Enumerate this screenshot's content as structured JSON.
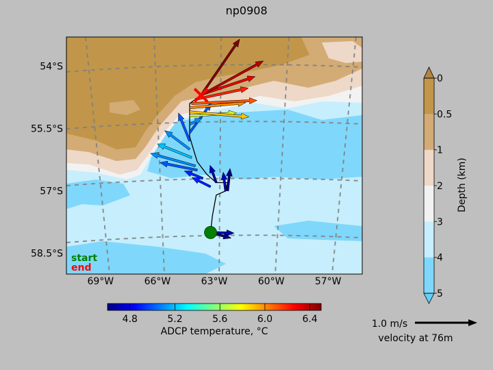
{
  "chart_data": [
    {
      "type": "scatter",
      "title": "np0908",
      "x_ticks": [
        "69°W",
        "66°W",
        "63°W",
        "60°W",
        "57°W"
      ],
      "x_tick_values": [
        -69,
        -66,
        -63,
        -60,
        -57
      ],
      "y_ticks": [
        "54°S",
        "55.5°S",
        "57°S",
        "58.5°S"
      ],
      "y_tick_values": [
        -54,
        -55.5,
        -57,
        -58.5
      ],
      "xlim": [
        -70.8,
        -55.2
      ],
      "ylim": [
        -59.0,
        -53.3
      ],
      "grid": true,
      "legend": {
        "start": "start",
        "end": "end",
        "placement": "bottom-left"
      },
      "start": {
        "lon": -63.2,
        "lat": -58.0
      },
      "end": {
        "lon": -63.7,
        "lat": -54.7
      },
      "ship_track": [
        {
          "lon": -63.2,
          "lat": -58.0
        },
        {
          "lon": -63.1,
          "lat": -57.6
        },
        {
          "lon": -62.9,
          "lat": -57.1
        },
        {
          "lon": -62.4,
          "lat": -57.0
        },
        {
          "lon": -62.3,
          "lat": -56.8
        },
        {
          "lon": -62.9,
          "lat": -56.8
        },
        {
          "lon": -63.4,
          "lat": -56.6
        },
        {
          "lon": -63.9,
          "lat": -56.3
        },
        {
          "lon": -64.1,
          "lat": -56.0
        },
        {
          "lon": -64.3,
          "lat": -55.7
        },
        {
          "lon": -64.3,
          "lat": -55.2
        },
        {
          "lon": -64.3,
          "lat": -54.9
        },
        {
          "lon": -63.7,
          "lat": -54.7
        }
      ],
      "velocity_vectors": [
        {
          "lon": -63.2,
          "lat": -58.0,
          "u": 0.38,
          "v": -0.01,
          "temp": 4.7
        },
        {
          "lon": -63.2,
          "lat": -58.0,
          "u": 0.33,
          "v": -0.09,
          "temp": 4.6
        },
        {
          "lon": -62.3,
          "lat": -57.0,
          "u": 0.04,
          "v": 0.36,
          "temp": 4.6
        },
        {
          "lon": -62.4,
          "lat": -57.0,
          "u": -0.04,
          "v": 0.3,
          "temp": 4.7
        },
        {
          "lon": -62.9,
          "lat": -56.8,
          "u": -0.1,
          "v": 0.28,
          "temp": 4.7
        },
        {
          "lon": -63.2,
          "lat": -56.9,
          "u": -0.3,
          "v": 0.15,
          "temp": 4.9
        },
        {
          "lon": -63.6,
          "lat": -56.7,
          "u": -0.3,
          "v": 0.12,
          "temp": 4.9
        },
        {
          "lon": -63.9,
          "lat": -56.5,
          "u": -0.6,
          "v": 0.12,
          "temp": 5.0
        },
        {
          "lon": -64.0,
          "lat": -56.4,
          "u": -0.72,
          "v": 0.2,
          "temp": 5.1
        },
        {
          "lon": -64.2,
          "lat": -56.2,
          "u": -0.55,
          "v": 0.22,
          "temp": 5.2
        },
        {
          "lon": -64.3,
          "lat": -56.0,
          "u": -0.4,
          "v": 0.3,
          "temp": 5.1
        },
        {
          "lon": -64.3,
          "lat": -55.8,
          "u": -0.18,
          "v": 0.45,
          "temp": 5.0
        },
        {
          "lon": -64.3,
          "lat": -55.6,
          "u": 0.35,
          "v": 0.48,
          "temp": 5.0
        },
        {
          "lon": -64.3,
          "lat": -55.4,
          "u": 0.2,
          "v": 0.1,
          "temp": 5.1
        },
        {
          "lon": -64.3,
          "lat": -55.2,
          "u": 0.75,
          "v": 0.05,
          "temp": 5.7
        },
        {
          "lon": -64.3,
          "lat": -55.1,
          "u": 0.95,
          "v": -0.08,
          "temp": 5.9
        },
        {
          "lon": -64.3,
          "lat": -55.0,
          "u": 0.9,
          "v": 0.08,
          "temp": 6.0
        },
        {
          "lon": -64.2,
          "lat": -54.9,
          "u": 1.05,
          "v": 0.05,
          "temp": 6.1
        },
        {
          "lon": -64.0,
          "lat": -54.8,
          "u": 0.85,
          "v": 0.18,
          "temp": 6.2
        },
        {
          "lon": -63.8,
          "lat": -54.7,
          "u": 0.9,
          "v": 0.3,
          "temp": 6.3
        },
        {
          "lon": -63.7,
          "lat": -54.7,
          "u": 1.0,
          "v": 0.55,
          "temp": 6.4
        },
        {
          "lon": -63.7,
          "lat": -54.7,
          "u": 0.62,
          "v": 0.9,
          "temp": 6.5
        }
      ],
      "depth_colorbar": {
        "label": "Depth (km)",
        "ticks": [
          "0",
          "0.5",
          "1",
          "2",
          "3",
          "4",
          "5"
        ],
        "colors": [
          "#c1964a",
          "#d3ab75",
          "#eed8c8",
          "#f2f2f2",
          "#c7eefd",
          "#7fd8fb"
        ]
      },
      "temperature_colorbar": {
        "label": "ADCP temperature, °C",
        "ticks": [
          "4.8",
          "5.2",
          "5.6",
          "6.0",
          "6.4"
        ],
        "tick_values": [
          4.8,
          5.2,
          5.6,
          6.0,
          6.4
        ],
        "range": [
          4.6,
          6.5
        ]
      },
      "velocity_key": {
        "value_label": "1.0 m/s",
        "depth_label": "velocity at 76m"
      }
    }
  ]
}
